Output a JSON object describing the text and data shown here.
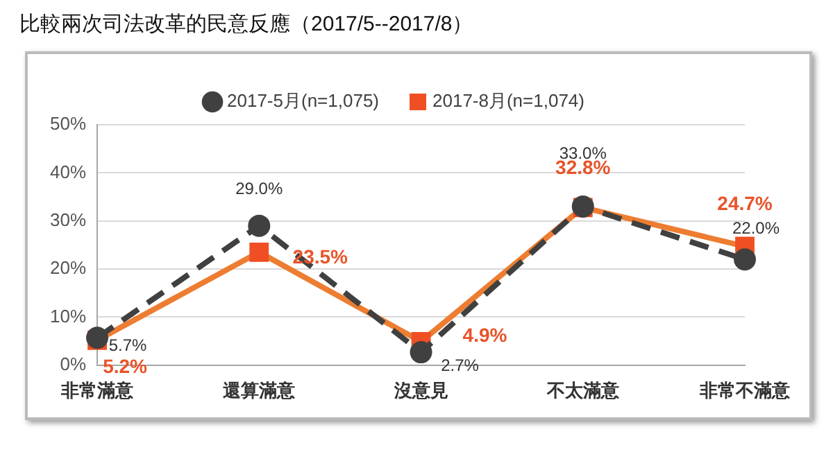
{
  "chart_data": {
    "type": "line",
    "title": "比較兩次司法改革的民意反應（2017/5--2017/8）",
    "categories": [
      "非常滿意",
      "還算滿意",
      "沒意見",
      "不太滿意",
      "非常不滿意"
    ],
    "series": [
      {
        "name": "2017-5月(n=1,075)",
        "color": "#404040",
        "values": [
          5.7,
          29.0,
          2.7,
          33.0,
          22.0
        ],
        "value_labels": [
          "5.7%",
          "29.0%",
          "2.7%",
          "33.0%",
          "22.0%"
        ],
        "marker": "circle",
        "line_style": "dashed"
      },
      {
        "name": "2017-8月(n=1,074)",
        "color": "#ed7d31",
        "values": [
          5.2,
          23.5,
          4.9,
          32.8,
          24.7
        ],
        "value_labels": [
          "5.2%",
          "23.5%",
          "4.9%",
          "32.8%",
          "24.7%"
        ],
        "marker": "square",
        "line_style": "solid"
      }
    ],
    "ylim": [
      0,
      50
    ],
    "yticks": [
      {
        "value": 0,
        "label": "0%"
      },
      {
        "value": 10,
        "label": "10%"
      },
      {
        "value": 20,
        "label": "20%"
      },
      {
        "value": 30,
        "label": "30%"
      },
      {
        "value": 40,
        "label": "40%"
      },
      {
        "value": 50,
        "label": "50%"
      }
    ],
    "grid": "y",
    "legend": "top"
  }
}
